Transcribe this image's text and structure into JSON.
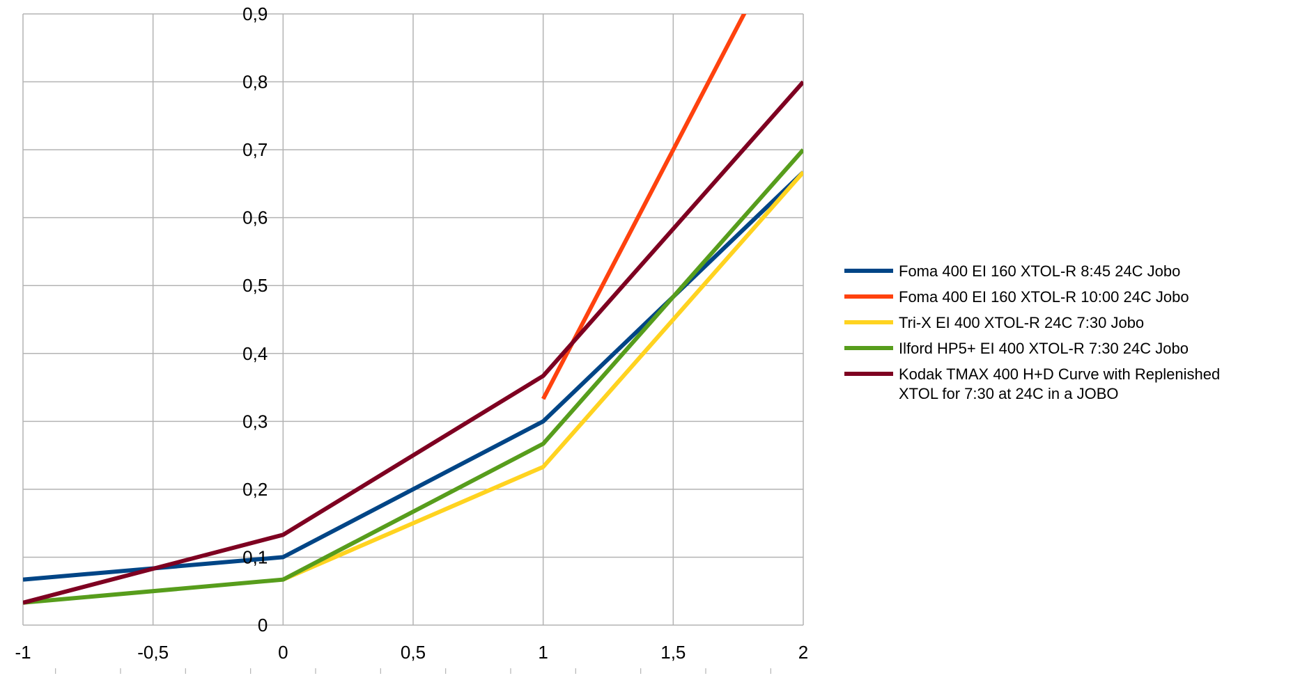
{
  "chart_data": {
    "type": "line",
    "title": "",
    "xlabel": "",
    "ylabel": "",
    "xlim": [
      -1,
      2
    ],
    "ylim": [
      0,
      0.9
    ],
    "x_ticks": [
      "-1",
      "-0,5",
      "0",
      "0,5",
      "1",
      "1,5",
      "2"
    ],
    "y_ticks": [
      "0",
      "0,1",
      "0,2",
      "0,3",
      "0,4",
      "0,5",
      "0,6",
      "0,7",
      "0,8",
      "0,9"
    ],
    "grid": true,
    "legend_position": "right",
    "series": [
      {
        "name": "Foma 400 EI 160 XTOL-R 8:45 24C Jobo",
        "legend_lines": [
          "Foma 400 EI 160 XTOL-R 8:45 24C Jobo"
        ],
        "color": "#004586",
        "points": [
          [
            -1,
            0.067
          ],
          [
            0,
            0.1
          ],
          [
            1,
            0.3
          ],
          [
            2,
            0.667
          ]
        ]
      },
      {
        "name": "Foma 400 EI 160 XTOL-R 10:00 24C Jobo",
        "legend_lines": [
          "Foma 400 EI 160 XTOL-R 10:00 24C Jobo"
        ],
        "color": "#ff420e",
        "points": [
          [
            1,
            0.333
          ],
          [
            2,
            1.067
          ]
        ]
      },
      {
        "name": "Tri-X EI 400 XTOL-R 24C 7:30 Jobo",
        "legend_lines": [
          "Tri-X EI 400 XTOL-R 24C 7:30 Jobo"
        ],
        "color": "#ffd320",
        "points": [
          [
            0,
            0.067
          ],
          [
            1,
            0.233
          ],
          [
            2,
            0.667
          ]
        ]
      },
      {
        "name": "Ilford HP5+ EI 400 XTOL-R  7:30 24C Jobo",
        "legend_lines": [
          "Ilford HP5+ EI 400 XTOL-R  7:30 24C Jobo"
        ],
        "color": "#579d1c",
        "points": [
          [
            -1,
            0.033
          ],
          [
            0,
            0.067
          ],
          [
            1,
            0.267
          ],
          [
            2,
            0.7
          ]
        ]
      },
      {
        "name": "Kodak TMAX 400 H+D Curve with Replenished XTOL for 7:30 at 24C in a JOBO",
        "legend_lines": [
          "Kodak TMAX 400 H+D Curve with Replenished",
          "XTOL for 7:30 at 24C in a JOBO"
        ],
        "color": "#7e0021",
        "points": [
          [
            -1,
            0.033
          ],
          [
            0,
            0.133
          ],
          [
            1,
            0.367
          ],
          [
            2,
            0.8
          ]
        ]
      }
    ]
  }
}
